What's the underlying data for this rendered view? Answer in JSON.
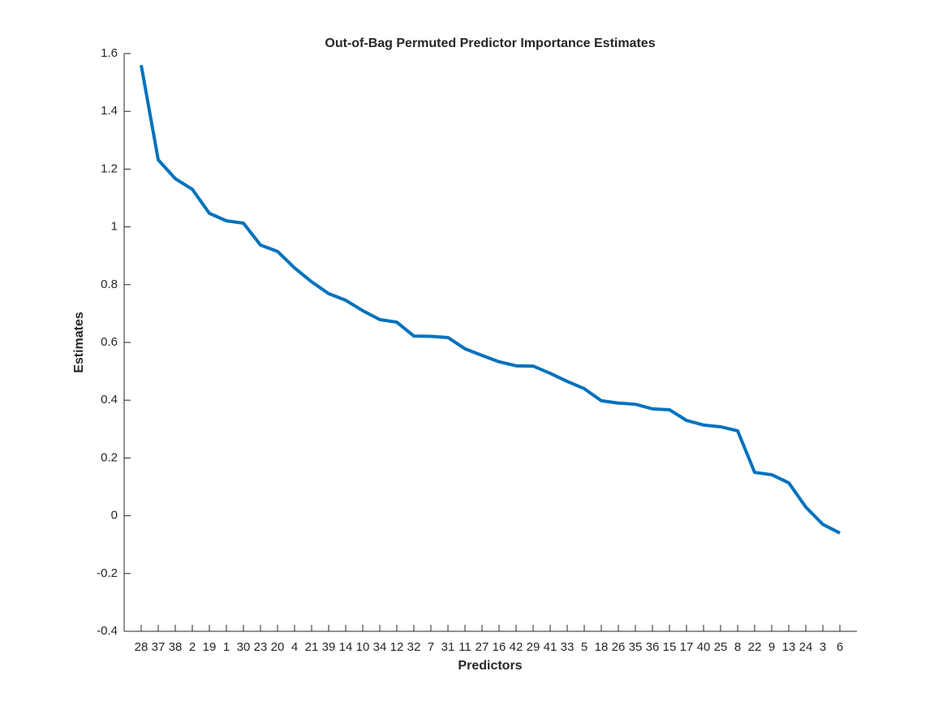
{
  "chart_data": {
    "type": "line",
    "title": "Out-of-Bag Permuted Predictor Importance Estimates",
    "x_label": "Predictors",
    "y_label": "Estimates",
    "categories": [
      "28",
      "37",
      "38",
      "2",
      "19",
      "1",
      "30",
      "23",
      "20",
      "4",
      "21",
      "39",
      "14",
      "10",
      "34",
      "12",
      "32",
      "7",
      "31",
      "11",
      "27",
      "16",
      "42",
      "29",
      "41",
      "33",
      "5",
      "18",
      "26",
      "35",
      "36",
      "15",
      "17",
      "40",
      "25",
      "8",
      "22",
      "9",
      "13",
      "24",
      "3",
      "6"
    ],
    "series": [
      {
        "name": "Estimates",
        "color": "#0072bd",
        "values": [
          1.56,
          1.232,
          1.167,
          1.13,
          1.047,
          1.021,
          1.013,
          0.937,
          0.915,
          0.858,
          0.81,
          0.769,
          0.746,
          0.71,
          0.679,
          0.67,
          0.622,
          0.621,
          0.617,
          0.578,
          0.555,
          0.533,
          0.519,
          0.518,
          0.493,
          0.465,
          0.44,
          0.398,
          0.39,
          0.386,
          0.37,
          0.367,
          0.33,
          0.314,
          0.308,
          0.294,
          0.15,
          0.142,
          0.114,
          0.03,
          -0.03,
          -0.06
        ]
      }
    ],
    "ylim": [
      -0.4,
      1.6
    ],
    "yticks": [
      -0.4,
      -0.2,
      0,
      0.2,
      0.4,
      0.6,
      0.8,
      1,
      1.2,
      1.4,
      1.6
    ],
    "grid": false
  }
}
